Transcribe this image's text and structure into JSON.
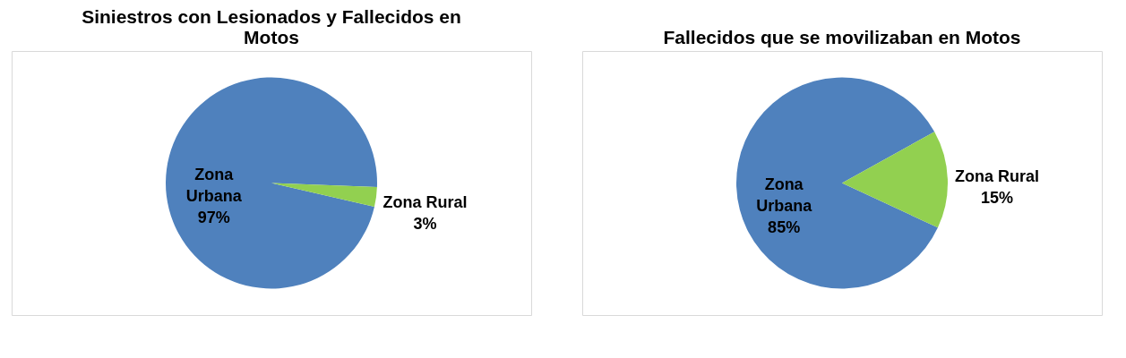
{
  "chart_data": [
    {
      "type": "pie",
      "title": "Siniestros con Lesionados y Fallecidos en Motos",
      "categories": [
        "Zona Urbana",
        "Zona Rural"
      ],
      "values": [
        97,
        3
      ],
      "value_labels": [
        "97%",
        "3%"
      ],
      "colors": [
        "#4f81bd",
        "#92d050"
      ],
      "legend": false
    },
    {
      "type": "pie",
      "title": "Fallecidos que se movilizaban en Motos",
      "categories": [
        "Zona Urbana",
        "Zona Rural"
      ],
      "values": [
        85,
        15
      ],
      "value_labels": [
        "85%",
        "15%"
      ],
      "colors": [
        "#4f81bd",
        "#92d050"
      ],
      "legend": false
    }
  ]
}
